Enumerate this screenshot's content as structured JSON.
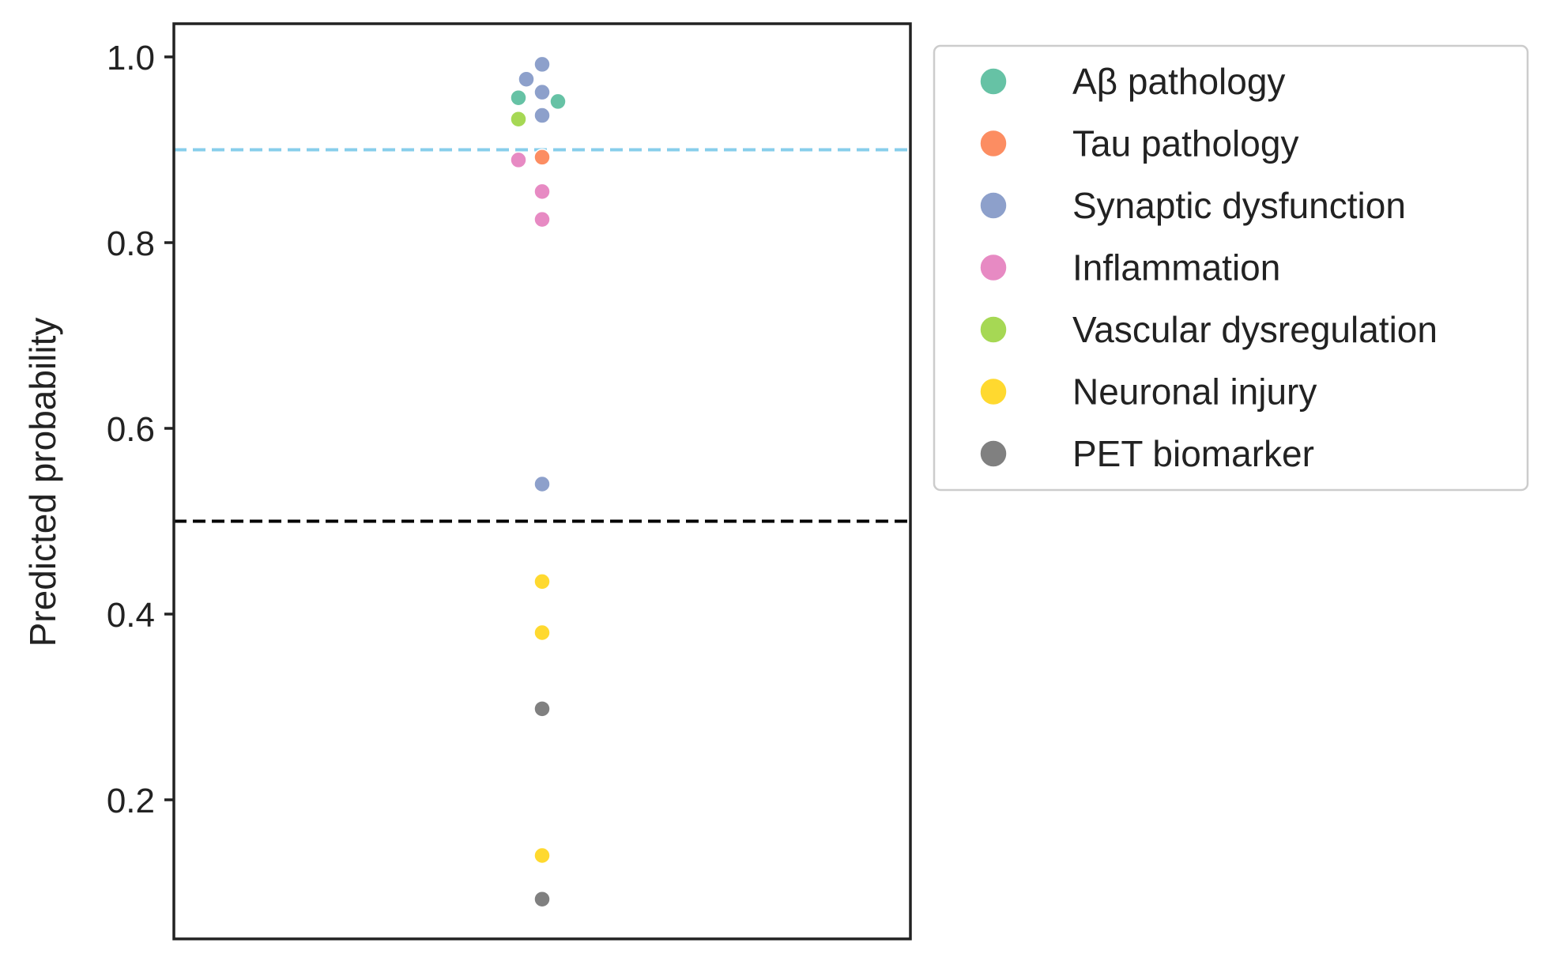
{
  "chart_data": {
    "type": "scatter",
    "subtype": "swarm",
    "title": "",
    "xlabel": "",
    "ylabel": "Predicted probability",
    "ylim": [
      0.05,
      1.035
    ],
    "yticks": [
      0.2,
      0.4,
      0.6,
      0.8,
      1.0
    ],
    "ytick_labels": [
      "0.2",
      "0.4",
      "0.6",
      "0.8",
      "1.0"
    ],
    "x_ticks_shown": false,
    "grid": false,
    "legend_position": "outside-right-top",
    "reference_lines": [
      {
        "y": 0.9,
        "color": "#87CEEB",
        "style": "dashed"
      },
      {
        "y": 0.5,
        "color": "#000000",
        "style": "dashed"
      }
    ],
    "series": [
      {
        "name": "Aβ pathology",
        "color": "#66c2a5",
        "values": [
          0.956,
          0.952
        ]
      },
      {
        "name": "Tau pathology",
        "color": "#fc8d62",
        "values": [
          0.892
        ]
      },
      {
        "name": "Synaptic dysfunction",
        "color": "#8da0cb",
        "values": [
          0.992,
          0.976,
          0.962,
          0.937,
          0.54
        ]
      },
      {
        "name": "Inflammation",
        "color": "#e78ac3",
        "values": [
          0.889,
          0.855,
          0.825
        ]
      },
      {
        "name": "Vascular dysregulation",
        "color": "#a6d854",
        "values": [
          0.933
        ]
      },
      {
        "name": "Neuronal injury",
        "color": "#ffd92f",
        "values": [
          0.435,
          0.38,
          0.14
        ]
      },
      {
        "name": "PET biomarker",
        "color": "#808080",
        "values": [
          0.298,
          0.093
        ]
      }
    ]
  }
}
